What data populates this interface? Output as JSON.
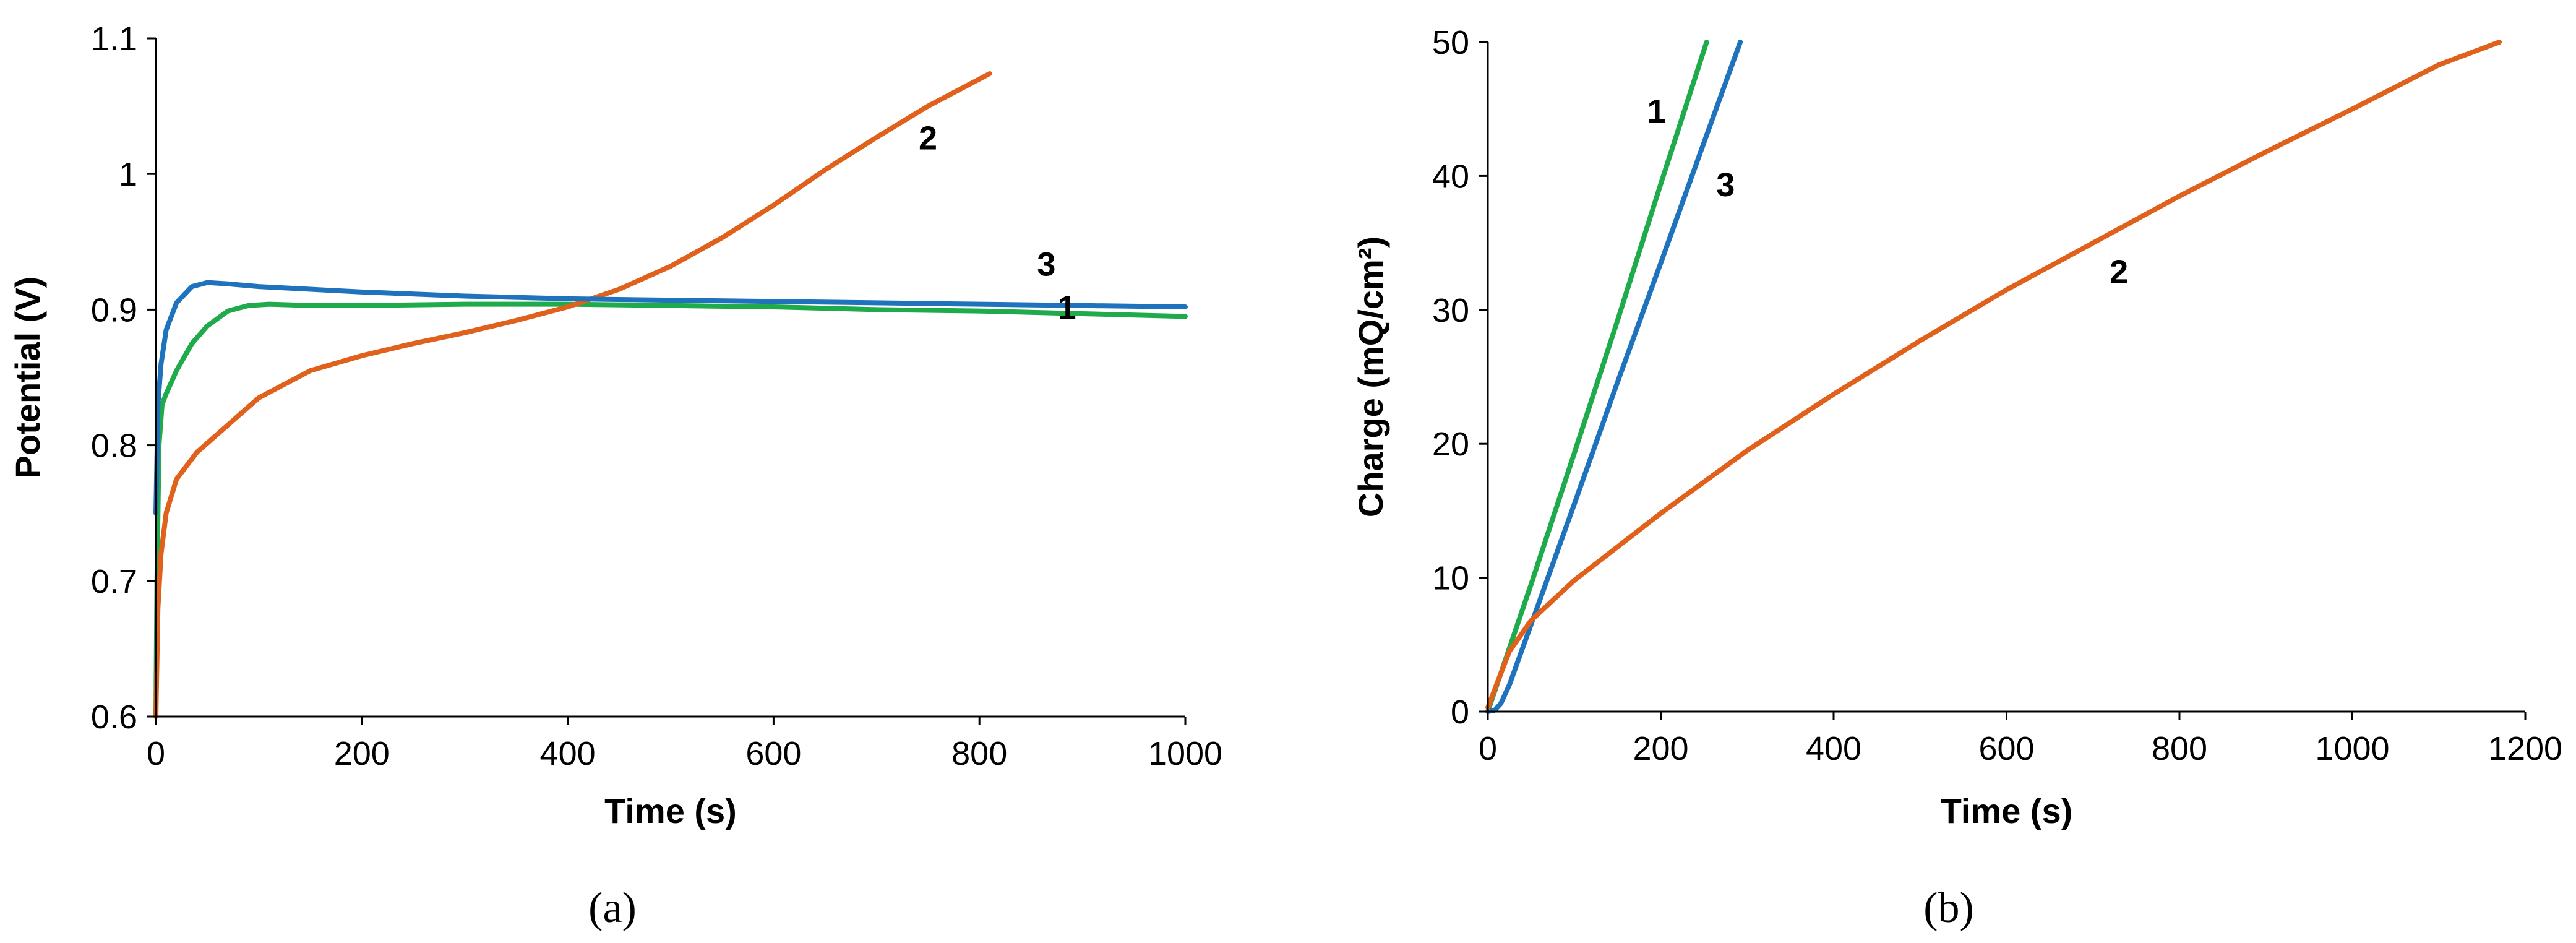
{
  "colors": {
    "green": "#1faa4b",
    "orange": "#e0611b",
    "blue": "#1f73bc"
  },
  "chart_data": [
    {
      "type": "line",
      "panel_label": "(a)",
      "xlabel": "Time (s)",
      "ylabel": "Potential (V)",
      "xlim": [
        0,
        1000
      ],
      "ylim": [
        0.6,
        1.1
      ],
      "x_ticks": [
        0,
        200,
        400,
        600,
        800,
        1000
      ],
      "x_tick_labels": [
        "0",
        "200",
        "400",
        "600",
        "800",
        "1000"
      ],
      "y_ticks": [
        0.6,
        0.7,
        0.8,
        0.9,
        1.0,
        1.1
      ],
      "y_tick_labels": [
        "0.6",
        "0.7",
        "0.8",
        "0.9",
        "1",
        "1.1"
      ],
      "grid": false,
      "series": [
        {
          "name": "1",
          "label_at": [
            885,
            0.893
          ],
          "color": "green",
          "x": [
            0,
            1,
            3,
            6,
            10,
            20,
            35,
            50,
            70,
            90,
            110,
            150,
            200,
            300,
            400,
            500,
            600,
            700,
            800,
            900,
            1000
          ],
          "y": [
            0.6,
            0.7,
            0.8,
            0.83,
            0.838,
            0.855,
            0.875,
            0.888,
            0.899,
            0.903,
            0.904,
            0.903,
            0.903,
            0.904,
            0.904,
            0.903,
            0.902,
            0.9,
            0.899,
            0.897,
            0.895
          ]
        },
        {
          "name": "2",
          "label_at": [
            750,
            1.018
          ],
          "color": "orange",
          "x": [
            0,
            2,
            5,
            10,
            20,
            40,
            70,
            100,
            150,
            200,
            250,
            300,
            350,
            400,
            450,
            500,
            550,
            600,
            650,
            700,
            750,
            810
          ],
          "y": [
            0.6,
            0.68,
            0.72,
            0.75,
            0.775,
            0.795,
            0.815,
            0.835,
            0.855,
            0.866,
            0.875,
            0.883,
            0.892,
            0.902,
            0.915,
            0.932,
            0.953,
            0.977,
            1.003,
            1.027,
            1.05,
            1.074
          ]
        },
        {
          "name": "3",
          "label_at": [
            865,
            0.925
          ],
          "color": "blue",
          "x": [
            0,
            2,
            5,
            10,
            20,
            35,
            50,
            70,
            100,
            200,
            300,
            400,
            500,
            600,
            700,
            800,
            900,
            1000
          ],
          "y": [
            0.75,
            0.83,
            0.86,
            0.885,
            0.905,
            0.917,
            0.92,
            0.919,
            0.917,
            0.913,
            0.91,
            0.908,
            0.907,
            0.906,
            0.905,
            0.904,
            0.903,
            0.902
          ]
        }
      ]
    },
    {
      "type": "line",
      "panel_label": "(b)",
      "xlabel": "Time (s)",
      "ylabel": "Charge (mQ/cm²)",
      "xlim": [
        0,
        1200
      ],
      "ylim": [
        0,
        50
      ],
      "x_ticks": [
        0,
        200,
        400,
        600,
        800,
        1000,
        1200
      ],
      "x_tick_labels": [
        "0",
        "200",
        "400",
        "600",
        "800",
        "1000",
        "1200"
      ],
      "y_ticks": [
        0,
        10,
        20,
        30,
        40,
        50
      ],
      "y_tick_labels": [
        "0",
        "10",
        "20",
        "30",
        "40",
        "50"
      ],
      "grid": false,
      "series": [
        {
          "name": "1",
          "label_at": [
            195,
            44
          ],
          "color": "green",
          "x": [
            0,
            50,
            100,
            150,
            200,
            253
          ],
          "y": [
            0,
            9.5,
            19.3,
            29.2,
            39.4,
            50
          ]
        },
        {
          "name": "3",
          "label_at": [
            275,
            38.5
          ],
          "color": "blue",
          "x": [
            0,
            8,
            15,
            25,
            50,
            100,
            150,
            200,
            250,
            292
          ],
          "y": [
            0,
            0.1,
            0.6,
            2.0,
            6.5,
            15.5,
            24.6,
            33.5,
            42.5,
            50
          ]
        },
        {
          "name": "2",
          "label_at": [
            730,
            32
          ],
          "color": "orange",
          "x": [
            0,
            10,
            25,
            50,
            75,
            100,
            150,
            200,
            300,
            400,
            500,
            600,
            700,
            800,
            900,
            1000,
            1100,
            1170
          ],
          "y": [
            0.3,
            2.0,
            4.5,
            6.8,
            8.3,
            9.8,
            12.3,
            14.8,
            19.5,
            23.7,
            27.7,
            31.5,
            35.0,
            38.5,
            41.8,
            45.0,
            48.3,
            50
          ]
        }
      ]
    }
  ]
}
